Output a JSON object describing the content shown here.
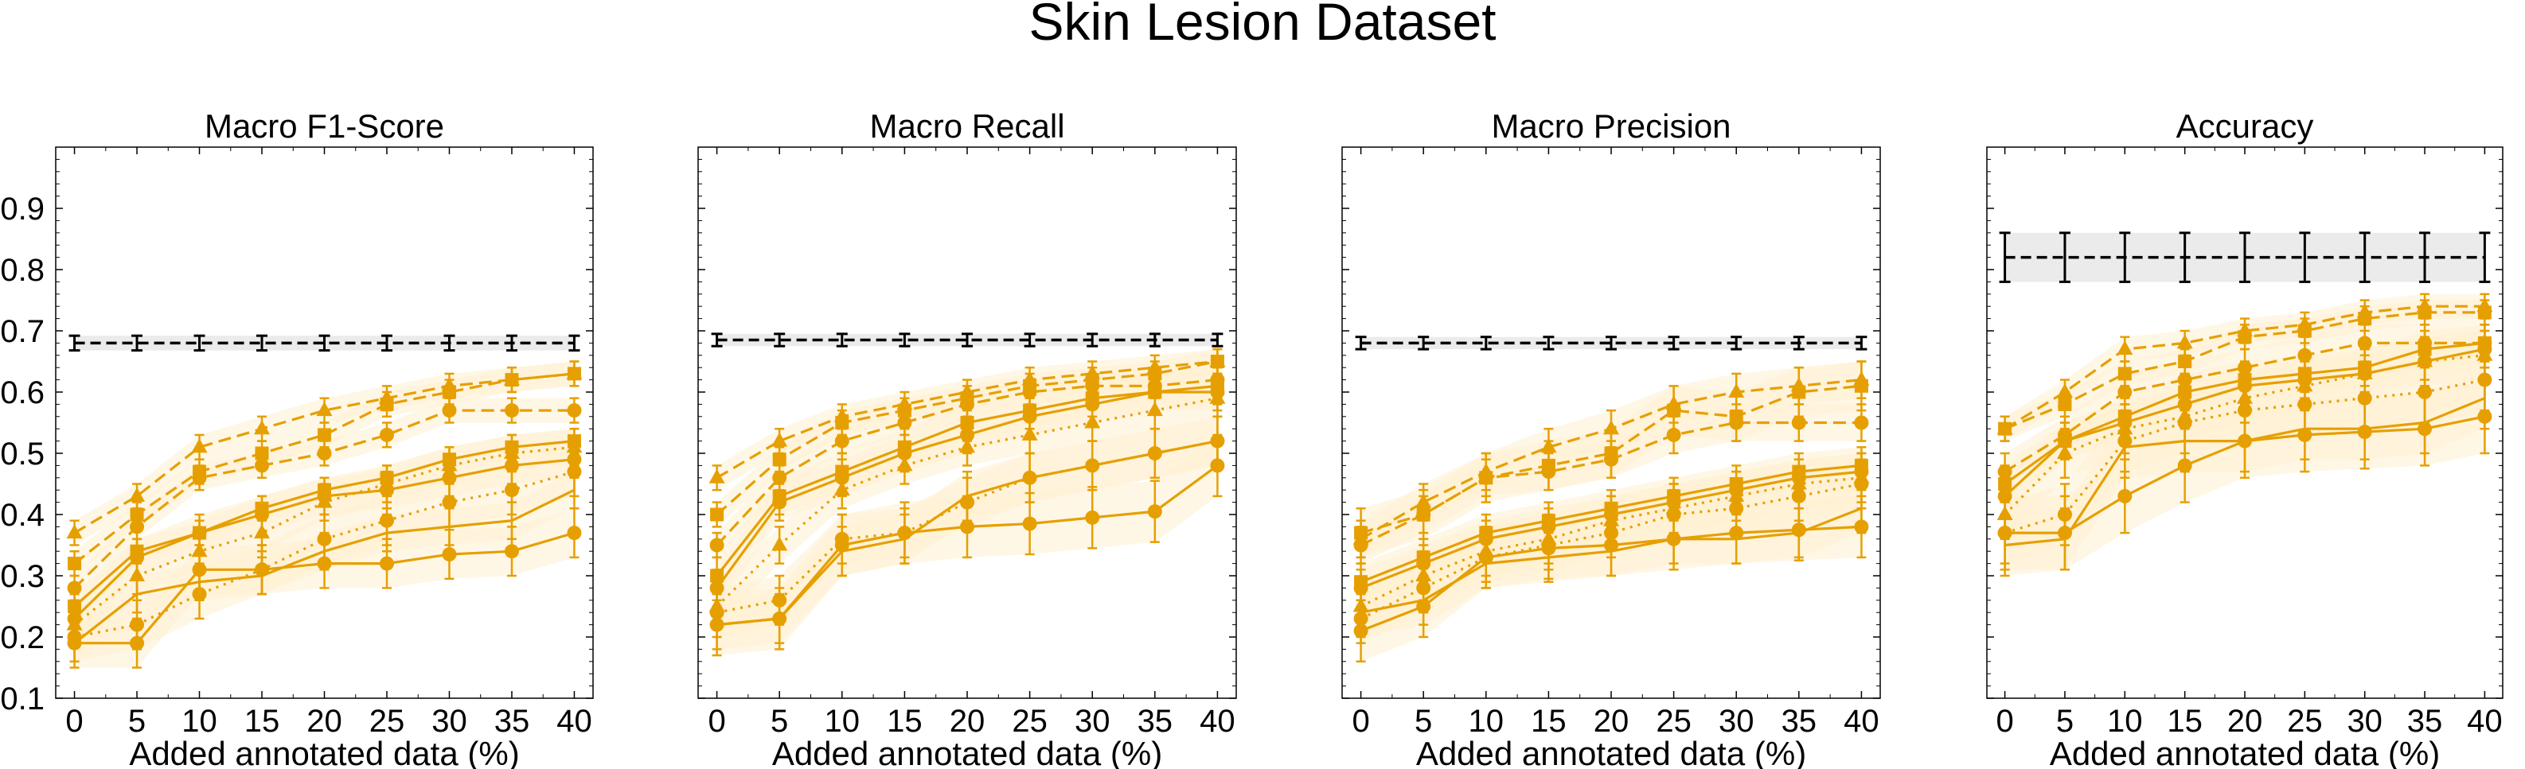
{
  "figure": {
    "title": "Skin Lesion Dataset"
  },
  "colors": {
    "series": "#E69F00",
    "band": "#FFF1D2",
    "reference": "#000000",
    "reference_band": "#DDDDDD"
  },
  "chart_data": [
    {
      "type": "line",
      "title": "Macro F1-Score",
      "xlabel": "Added annotated data (%)",
      "ylabel": "",
      "x": [
        0,
        5,
        10,
        15,
        20,
        25,
        30,
        35,
        40
      ],
      "xticks": [
        "0",
        "5",
        "10",
        "15",
        "20",
        "25",
        "30",
        "35",
        "40"
      ],
      "ylim": [
        0.1,
        1.0
      ],
      "yticks": [
        "0.1",
        "0.2",
        "0.3",
        "0.4",
        "0.5",
        "0.6",
        "0.7",
        "0.8",
        "0.9"
      ],
      "grid": false,
      "reference": {
        "values": [
          0.68,
          0.68,
          0.68,
          0.68,
          0.68,
          0.68,
          0.68,
          0.68,
          0.68
        ],
        "err": 0.012
      },
      "series": [
        {
          "style": "dashed",
          "marker": "triangle",
          "values": [
            0.37,
            0.43,
            0.51,
            0.54,
            0.57,
            0.59,
            0.61,
            0.62,
            0.63
          ],
          "err": 0.02
        },
        {
          "style": "dashed",
          "marker": "square",
          "values": [
            0.32,
            0.4,
            0.47,
            0.5,
            0.53,
            0.58,
            0.6,
            0.62,
            0.63
          ],
          "err": 0.02
        },
        {
          "style": "dashed",
          "marker": "circle",
          "values": [
            0.28,
            0.38,
            0.46,
            0.48,
            0.5,
            0.53,
            0.57,
            0.57,
            0.57
          ],
          "err": 0.02
        },
        {
          "style": "solid",
          "marker": "square",
          "values": [
            0.25,
            0.34,
            0.37,
            0.41,
            0.44,
            0.46,
            0.49,
            0.51,
            0.52
          ],
          "err": 0.02
        },
        {
          "style": "solid",
          "marker": "circle",
          "values": [
            0.23,
            0.33,
            0.37,
            0.4,
            0.43,
            0.44,
            0.46,
            0.48,
            0.49
          ],
          "err": 0.03
        },
        {
          "style": "dotted",
          "marker": "triangle",
          "values": [
            0.22,
            0.3,
            0.34,
            0.37,
            0.42,
            0.45,
            0.48,
            0.5,
            0.51
          ],
          "err": 0.03
        },
        {
          "style": "dotted",
          "marker": "circle",
          "values": [
            0.2,
            0.22,
            0.27,
            0.31,
            0.36,
            0.39,
            0.42,
            0.44,
            0.47
          ],
          "err": 0.04
        },
        {
          "style": "solid",
          "marker": "circle",
          "values": [
            0.19,
            0.19,
            0.31,
            0.31,
            0.32,
            0.32,
            0.335,
            0.34,
            0.37
          ],
          "err": 0.04
        },
        {
          "style": "solid",
          "marker": "none",
          "values": [
            0.19,
            0.27,
            0.29,
            0.3,
            0.34,
            0.37,
            0.38,
            0.39,
            0.44
          ],
          "err": 0.03
        }
      ]
    },
    {
      "type": "line",
      "title": "Macro Recall",
      "xlabel": "Added annotated data (%)",
      "ylabel": "",
      "x": [
        0,
        5,
        10,
        15,
        20,
        25,
        30,
        35,
        40
      ],
      "xticks": [
        "0",
        "5",
        "10",
        "15",
        "20",
        "25",
        "30",
        "35",
        "40"
      ],
      "ylim": [
        0.1,
        1.0
      ],
      "yticks": [],
      "grid": false,
      "reference": {
        "values": [
          0.685,
          0.685,
          0.685,
          0.685,
          0.685,
          0.685,
          0.685,
          0.685,
          0.685
        ],
        "err": 0.01
      },
      "series": [
        {
          "style": "dashed",
          "marker": "triangle",
          "values": [
            0.46,
            0.52,
            0.56,
            0.58,
            0.6,
            0.62,
            0.63,
            0.64,
            0.65
          ],
          "err": 0.02
        },
        {
          "style": "dashed",
          "marker": "square",
          "values": [
            0.4,
            0.49,
            0.55,
            0.57,
            0.59,
            0.61,
            0.62,
            0.63,
            0.65
          ],
          "err": 0.02
        },
        {
          "style": "dashed",
          "marker": "circle",
          "values": [
            0.35,
            0.46,
            0.52,
            0.55,
            0.58,
            0.6,
            0.61,
            0.61,
            0.62
          ],
          "err": 0.02
        },
        {
          "style": "solid",
          "marker": "square",
          "values": [
            0.3,
            0.43,
            0.47,
            0.51,
            0.55,
            0.57,
            0.59,
            0.6,
            0.61
          ],
          "err": 0.03
        },
        {
          "style": "solid",
          "marker": "circle",
          "values": [
            0.28,
            0.42,
            0.46,
            0.5,
            0.53,
            0.56,
            0.58,
            0.6,
            0.6
          ],
          "err": 0.03
        },
        {
          "style": "dotted",
          "marker": "triangle",
          "values": [
            0.25,
            0.35,
            0.44,
            0.48,
            0.51,
            0.53,
            0.55,
            0.57,
            0.59
          ],
          "err": 0.03
        },
        {
          "style": "dotted",
          "marker": "circle",
          "values": [
            0.24,
            0.26,
            0.36,
            0.37,
            0.42,
            0.46,
            0.48,
            0.5,
            0.52
          ],
          "err": 0.04
        },
        {
          "style": "solid",
          "marker": "circle",
          "values": [
            0.22,
            0.23,
            0.35,
            0.37,
            0.38,
            0.385,
            0.395,
            0.405,
            0.48
          ],
          "err": 0.05
        },
        {
          "style": "solid",
          "marker": "none",
          "values": [
            0.22,
            0.23,
            0.34,
            0.36,
            0.43,
            0.46,
            0.48,
            0.5,
            0.52
          ],
          "err": 0.04
        }
      ]
    },
    {
      "type": "line",
      "title": "Macro Precision",
      "xlabel": "Added annotated data (%)",
      "ylabel": "",
      "x": [
        0,
        5,
        10,
        15,
        20,
        25,
        30,
        35,
        40
      ],
      "xticks": [
        "0",
        "5",
        "10",
        "15",
        "20",
        "25",
        "30",
        "35",
        "40"
      ],
      "ylim": [
        0.1,
        1.0
      ],
      "yticks": [],
      "grid": false,
      "reference": {
        "values": [
          0.68,
          0.68,
          0.68,
          0.68,
          0.68,
          0.68,
          0.68,
          0.68,
          0.68
        ],
        "err": 0.01
      },
      "series": [
        {
          "style": "dashed",
          "marker": "triangle",
          "values": [
            0.36,
            0.42,
            0.47,
            0.51,
            0.54,
            0.58,
            0.6,
            0.61,
            0.62
          ],
          "err": 0.03
        },
        {
          "style": "dashed",
          "marker": "square",
          "values": [
            0.37,
            0.4,
            0.46,
            0.48,
            0.5,
            0.57,
            0.56,
            0.6,
            0.61
          ],
          "err": 0.04
        },
        {
          "style": "dashed",
          "marker": "circle",
          "values": [
            0.35,
            0.4,
            0.46,
            0.47,
            0.49,
            0.53,
            0.55,
            0.55,
            0.55
          ],
          "err": 0.03
        },
        {
          "style": "solid",
          "marker": "square",
          "values": [
            0.29,
            0.33,
            0.37,
            0.39,
            0.41,
            0.43,
            0.45,
            0.47,
            0.48
          ],
          "err": 0.03
        },
        {
          "style": "solid",
          "marker": "circle",
          "values": [
            0.28,
            0.32,
            0.36,
            0.38,
            0.4,
            0.42,
            0.44,
            0.46,
            0.47
          ],
          "err": 0.03
        },
        {
          "style": "dotted",
          "marker": "triangle",
          "values": [
            0.25,
            0.3,
            0.34,
            0.36,
            0.39,
            0.41,
            0.43,
            0.45,
            0.46
          ],
          "err": 0.04
        },
        {
          "style": "dotted",
          "marker": "circle",
          "values": [
            0.23,
            0.28,
            0.33,
            0.35,
            0.37,
            0.4,
            0.41,
            0.43,
            0.45
          ],
          "err": 0.04
        },
        {
          "style": "solid",
          "marker": "circle",
          "values": [
            0.21,
            0.25,
            0.33,
            0.345,
            0.35,
            0.36,
            0.37,
            0.375,
            0.38
          ],
          "err": 0.05
        },
        {
          "style": "solid",
          "marker": "none",
          "values": [
            0.24,
            0.26,
            0.32,
            0.33,
            0.34,
            0.36,
            0.36,
            0.37,
            0.41
          ],
          "err": 0.04
        }
      ]
    },
    {
      "type": "line",
      "title": "Accuracy",
      "xlabel": "Added annotated data (%)",
      "ylabel": "",
      "x": [
        0,
        5,
        10,
        15,
        20,
        25,
        30,
        35,
        40
      ],
      "xticks": [
        "0",
        "5",
        "10",
        "15",
        "20",
        "25",
        "30",
        "35",
        "40"
      ],
      "ylim": [
        0.1,
        1.0
      ],
      "yticks": [],
      "grid": false,
      "reference": {
        "values": [
          0.82,
          0.82,
          0.82,
          0.82,
          0.82,
          0.82,
          0.82,
          0.82,
          0.82
        ],
        "err": 0.04
      },
      "series": [
        {
          "style": "dashed",
          "marker": "triangle",
          "values": [
            0.54,
            0.6,
            0.67,
            0.68,
            0.7,
            0.71,
            0.73,
            0.74,
            0.74
          ],
          "err": 0.02
        },
        {
          "style": "dashed",
          "marker": "square",
          "values": [
            0.54,
            0.58,
            0.63,
            0.65,
            0.69,
            0.7,
            0.72,
            0.73,
            0.73
          ],
          "err": 0.02
        },
        {
          "style": "dashed",
          "marker": "circle",
          "values": [
            0.47,
            0.53,
            0.6,
            0.62,
            0.64,
            0.66,
            0.68,
            0.68,
            0.68
          ],
          "err": 0.03
        },
        {
          "style": "solid",
          "marker": "square",
          "values": [
            0.45,
            0.52,
            0.56,
            0.6,
            0.62,
            0.63,
            0.64,
            0.67,
            0.68
          ],
          "err": 0.03
        },
        {
          "style": "solid",
          "marker": "circle",
          "values": [
            0.43,
            0.52,
            0.55,
            0.58,
            0.61,
            0.62,
            0.63,
            0.65,
            0.67
          ],
          "err": 0.03
        },
        {
          "style": "dotted",
          "marker": "triangle",
          "values": [
            0.4,
            0.5,
            0.54,
            0.56,
            0.59,
            0.61,
            0.63,
            0.65,
            0.66
          ],
          "err": 0.04
        },
        {
          "style": "dotted",
          "marker": "circle",
          "values": [
            0.37,
            0.4,
            0.52,
            0.55,
            0.57,
            0.58,
            0.59,
            0.6,
            0.62
          ],
          "err": 0.05
        },
        {
          "style": "solid",
          "marker": "circle",
          "values": [
            0.37,
            0.37,
            0.43,
            0.48,
            0.52,
            0.53,
            0.535,
            0.54,
            0.56
          ],
          "err": 0.06
        },
        {
          "style": "solid",
          "marker": "none",
          "values": [
            0.35,
            0.36,
            0.51,
            0.52,
            0.52,
            0.54,
            0.54,
            0.55,
            0.59
          ],
          "err": 0.05
        }
      ]
    }
  ]
}
